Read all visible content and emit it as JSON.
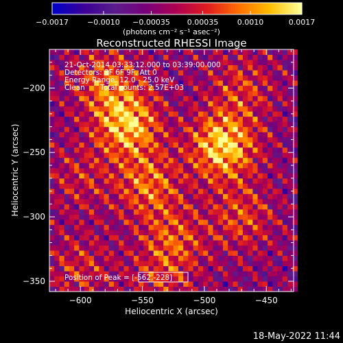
{
  "chart_data": {
    "type": "heatmap",
    "title": "Reconstructed RHESSI Image",
    "xlabel": "Heliocentric X (arcsec)",
    "ylabel": "Heliocentric Y (arcsec)",
    "xlim": [
      -625,
      -428
    ],
    "ylim": [
      -358,
      -170
    ],
    "x_ticks": [
      -600,
      -550,
      -500,
      -450
    ],
    "x_tick_labels": [
      "−600",
      "−550",
      "−500",
      "−450"
    ],
    "y_ticks": [
      -200,
      -250,
      -300,
      -350
    ],
    "y_tick_labels": [
      "−200",
      "−250",
      "−300",
      "−350"
    ],
    "colorbar": {
      "ticks": [
        -0.0017,
        -0.001,
        -0.00035,
        0.00035,
        0.001,
        0.0017
      ],
      "tick_labels": [
        "−0.0017",
        "−0.0010",
        "−0.00035",
        "0.00035",
        "0.0010",
        "0.0017"
      ],
      "unit_label": "(photons cm⁻² s⁻¹ asec⁻²)",
      "colors": [
        "#0000c8",
        "#3c0096",
        "#5a1e8c",
        "#78007a",
        "#b00050",
        "#e01e1e",
        "#ff6e00",
        "#ffbe00",
        "#ffff96"
      ]
    },
    "info_lines": [
      "21-Oct-2014 03:33:12.000 to 03:39:00.000",
      "Detectors: 3F 6F 9F, Att 0",
      "Energy Range: 12.0 - 25.0 keV",
      "Clean",
      "Total counts: 2.57E+03"
    ],
    "peak_label": "Position of Peak = [-562,-228]",
    "peak": [
      -562,
      -228
    ],
    "sources": [
      {
        "x": -485,
        "y": -245,
        "intensity": 1.0
      },
      {
        "x": -562,
        "y": -228,
        "intensity": 0.9
      },
      {
        "x": -580,
        "y": -195,
        "intensity": 0.55
      },
      {
        "x": -545,
        "y": -275,
        "intensity": 0.6
      },
      {
        "x": -525,
        "y": -318,
        "intensity": 0.5
      },
      {
        "x": -470,
        "y": -300,
        "intensity": 0.45
      },
      {
        "x": -470,
        "y": -200,
        "intensity": 0.4
      },
      {
        "x": -600,
        "y": -270,
        "intensity": 0.3
      },
      {
        "x": -600,
        "y": -340,
        "intensity": 0.35
      },
      {
        "x": -535,
        "y": -350,
        "intensity": 0.3
      }
    ]
  },
  "footer": {
    "timestamp": "18-May-2022 11:44"
  }
}
